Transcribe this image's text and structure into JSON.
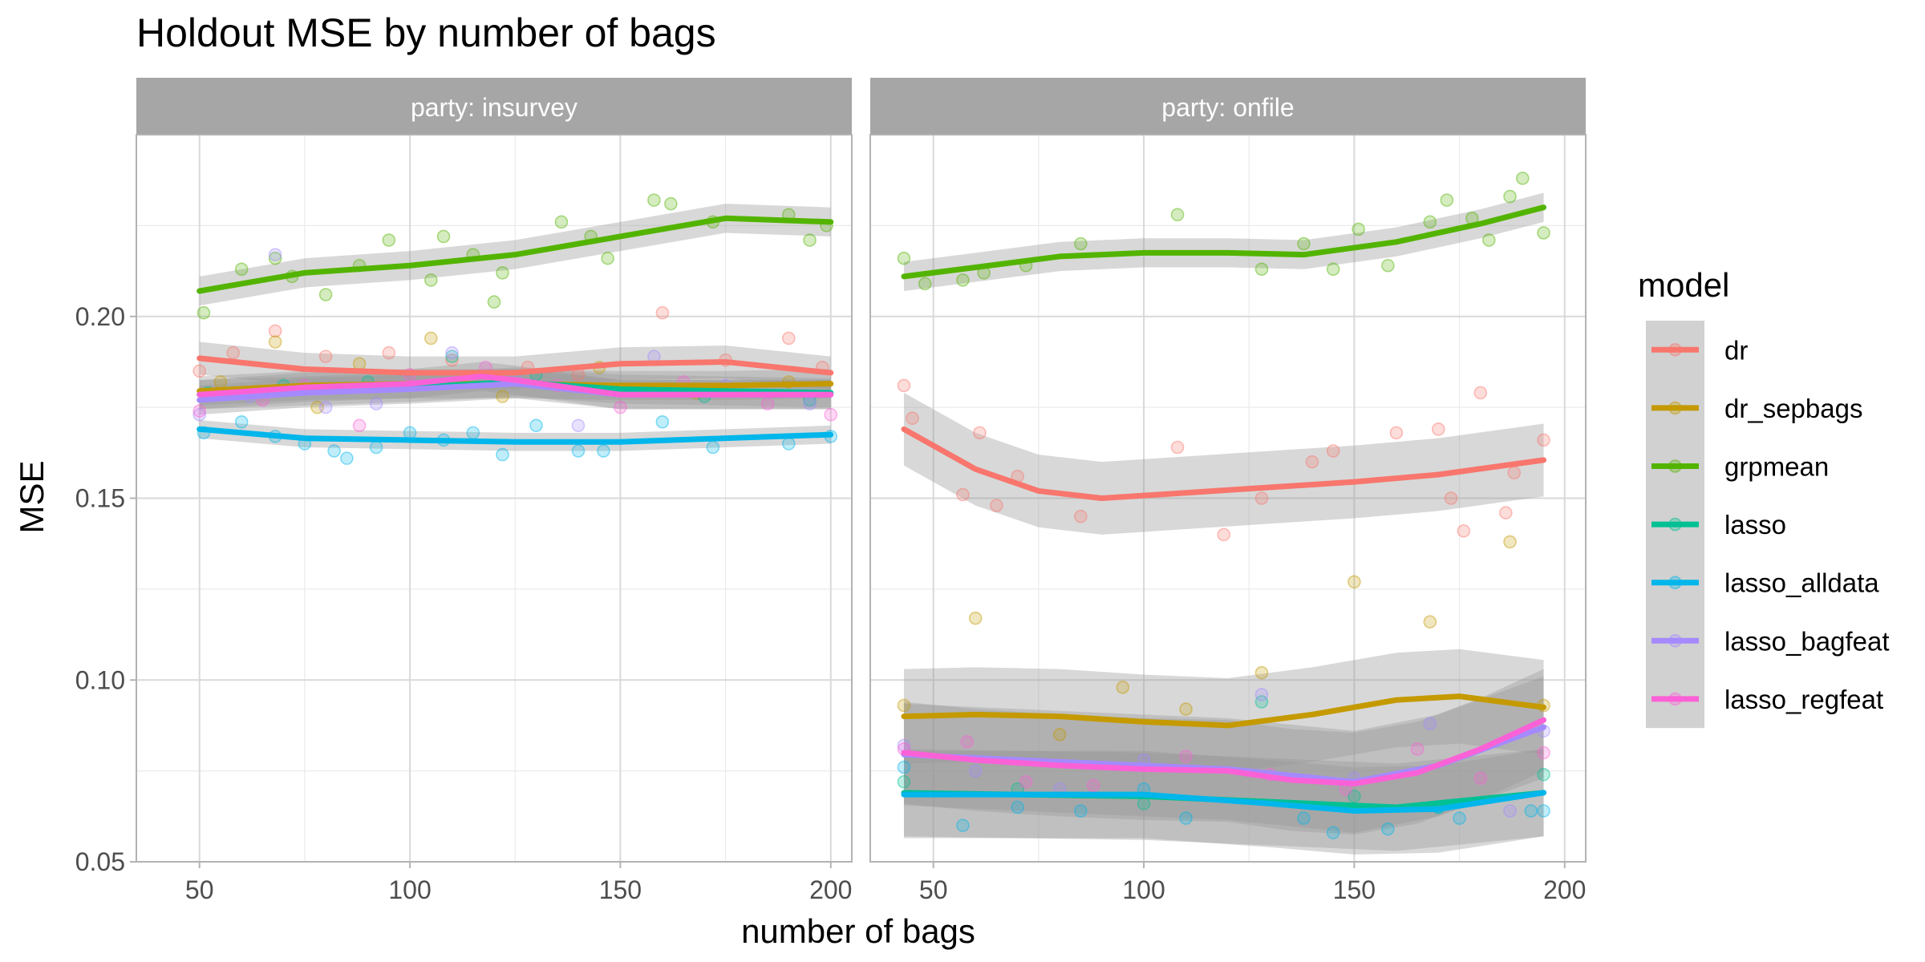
{
  "chart_data": {
    "type": "scatter",
    "title": "Holdout MSE by number of bags",
    "xlabel": "number of bags",
    "ylabel": "MSE",
    "xlim": [
      35,
      205
    ],
    "ylim": [
      0.05,
      0.25
    ],
    "x_ticks": [
      50,
      100,
      150,
      200
    ],
    "y_ticks": [
      0.05,
      0.1,
      0.15,
      0.2
    ],
    "y_tick_labels": [
      "0.05",
      "0.10",
      "0.15",
      "0.20"
    ],
    "grid": true,
    "legend": {
      "title": "model",
      "position": "right",
      "entries": [
        "dr",
        "dr_sepbags",
        "grpmean",
        "lasso",
        "lasso_alldata",
        "lasso_bagfeat",
        "lasso_regfeat"
      ]
    },
    "colors": {
      "dr": "#F8766D",
      "dr_sepbags": "#C49A00",
      "grpmean": "#53B400",
      "lasso": "#00C094",
      "lasso_alldata": "#00B6EB",
      "lasso_bagfeat": "#A58AFF",
      "lasso_regfeat": "#FB61D7",
      "strip_bg": "#A6A6A6",
      "ribbon": "#999999"
    },
    "panels": [
      {
        "strip": "party: insurvey",
        "smooth": [
          {
            "model": "dr",
            "x": [
              50,
              75,
              100,
              125,
              150,
              175,
              200
            ],
            "y": [
              0.1885,
              0.1855,
              0.1845,
              0.1845,
              0.187,
              0.1875,
              0.1845
            ],
            "se": 0.0045
          },
          {
            "model": "dr_sepbags",
            "x": [
              50,
              75,
              100,
              125,
              150,
              175,
              200
            ],
            "y": [
              0.1795,
              0.181,
              0.1815,
              0.1815,
              0.181,
              0.181,
              0.1815
            ],
            "se": 0.004
          },
          {
            "model": "grpmean",
            "x": [
              50,
              75,
              100,
              125,
              150,
              175,
              200
            ],
            "y": [
              0.207,
              0.212,
              0.214,
              0.217,
              0.222,
              0.227,
              0.226
            ],
            "se": 0.004
          },
          {
            "model": "lasso",
            "x": [
              50,
              75,
              100,
              125,
              150,
              175,
              200
            ],
            "y": [
              0.1785,
              0.1795,
              0.1805,
              0.182,
              0.18,
              0.1795,
              0.179
            ],
            "se": 0.004
          },
          {
            "model": "lasso_alldata",
            "x": [
              50,
              75,
              100,
              125,
              150,
              175,
              200
            ],
            "y": [
              0.169,
              0.1665,
              0.166,
              0.1655,
              0.1655,
              0.1665,
              0.1675
            ],
            "se": 0.0025
          },
          {
            "model": "lasso_bagfeat",
            "x": [
              50,
              75,
              100,
              125,
              150,
              175,
              200
            ],
            "y": [
              0.177,
              0.179,
              0.18,
              0.1815,
              0.1785,
              0.1785,
              0.1785
            ],
            "se": 0.004
          },
          {
            "model": "lasso_regfeat",
            "x": [
              50,
              75,
              100,
              117,
              125,
              150,
              175,
              200
            ],
            "y": [
              0.1785,
              0.1805,
              0.1815,
              0.1835,
              0.1825,
              0.1785,
              0.1785,
              0.1785
            ],
            "se": 0.004
          }
        ],
        "points": [
          {
            "model": "dr",
            "x": [
              50,
              58,
              68,
              80,
              95,
              110,
              128,
              140,
              160,
              175,
              190,
              198
            ],
            "y": [
              0.185,
              0.19,
              0.196,
              0.189,
              0.19,
              0.188,
              0.186,
              0.184,
              0.201,
              0.188,
              0.194,
              0.186
            ]
          },
          {
            "model": "dr_sepbags",
            "x": [
              55,
              68,
              78,
              88,
              105,
              122,
              145,
              168,
              190
            ],
            "y": [
              0.182,
              0.193,
              0.175,
              0.187,
              0.194,
              0.178,
              0.186,
              0.179,
              0.182
            ]
          },
          {
            "model": "grpmean",
            "x": [
              51,
              60,
              68,
              72,
              80,
              88,
              95,
              105,
              108,
              115,
              120,
              122,
              136,
              143,
              147,
              158,
              162,
              172,
              190,
              195,
              199
            ],
            "y": [
              0.201,
              0.213,
              0.216,
              0.211,
              0.206,
              0.214,
              0.221,
              0.21,
              0.222,
              0.217,
              0.204,
              0.212,
              0.226,
              0.222,
              0.216,
              0.232,
              0.231,
              0.226,
              0.228,
              0.221,
              0.225
            ]
          },
          {
            "model": "lasso",
            "x": [
              52,
              70,
              90,
              110,
              130,
              150,
              170,
              195
            ],
            "y": [
              0.179,
              0.181,
              0.182,
              0.189,
              0.184,
              0.18,
              0.178,
              0.177
            ]
          },
          {
            "model": "lasso_alldata",
            "x": [
              51,
              60,
              68,
              75,
              82,
              85,
              92,
              100,
              108,
              115,
              122,
              130,
              140,
              146,
              160,
              172,
              190,
              200
            ],
            "y": [
              0.168,
              0.171,
              0.167,
              0.165,
              0.163,
              0.161,
              0.164,
              0.168,
              0.166,
              0.168,
              0.162,
              0.17,
              0.163,
              0.163,
              0.171,
              0.164,
              0.165,
              0.167
            ]
          },
          {
            "model": "lasso_bagfeat",
            "x": [
              50,
              62,
              68,
              80,
              92,
              110,
              125,
              140,
              158,
              175,
              195
            ],
            "y": [
              0.173,
              0.178,
              0.217,
              0.175,
              0.176,
              0.19,
              0.183,
              0.17,
              0.189,
              0.181,
              0.176
            ]
          },
          {
            "model": "lasso_regfeat",
            "x": [
              50,
              65,
              75,
              88,
              100,
              118,
              135,
              150,
              165,
              185,
              200
            ],
            "y": [
              0.174,
              0.177,
              0.181,
              0.17,
              0.184,
              0.186,
              0.181,
              0.175,
              0.182,
              0.176,
              0.173
            ]
          }
        ]
      },
      {
        "strip": "party: onfile",
        "smooth": [
          {
            "model": "dr",
            "x": [
              43,
              60,
              75,
              90,
              110,
              130,
              150,
              170,
              195
            ],
            "y": [
              0.169,
              0.158,
              0.152,
              0.15,
              0.1515,
              0.153,
              0.1545,
              0.1565,
              0.1605
            ],
            "se": 0.01
          },
          {
            "model": "dr_sepbags",
            "x": [
              43,
              60,
              80,
              100,
              120,
              140,
              160,
              175,
              195
            ],
            "y": [
              0.09,
              0.0905,
              0.09,
              0.0885,
              0.0875,
              0.0905,
              0.0945,
              0.0955,
              0.0925
            ],
            "se": 0.013
          },
          {
            "model": "grpmean",
            "x": [
              43,
              60,
              80,
              100,
              120,
              138,
              160,
              180,
              195
            ],
            "y": [
              0.211,
              0.2135,
              0.2165,
              0.2175,
              0.2175,
              0.217,
              0.2205,
              0.2255,
              0.23
            ],
            "se": 0.004
          },
          {
            "model": "lasso",
            "x": [
              43,
              70,
              100,
              130,
              160,
              195
            ],
            "y": [
              0.069,
              0.0685,
              0.068,
              0.0665,
              0.065,
              0.069
            ],
            "se": 0.012
          },
          {
            "model": "lasso_alldata",
            "x": [
              43,
              70,
              100,
              130,
              150,
              170,
              195
            ],
            "y": [
              0.0685,
              0.0685,
              0.0685,
              0.066,
              0.064,
              0.0645,
              0.069
            ],
            "se": 0.012
          },
          {
            "model": "lasso_bagfeat",
            "x": [
              43,
              80,
              120,
              150,
              170,
              195
            ],
            "y": [
              0.0795,
              0.0775,
              0.0755,
              0.072,
              0.0765,
              0.087
            ],
            "se": 0.014
          },
          {
            "model": "lasso_regfeat",
            "x": [
              43,
              60,
              80,
              100,
              120,
              135,
              150,
              165,
              180,
              195
            ],
            "y": [
              0.08,
              0.078,
              0.0765,
              0.0755,
              0.075,
              0.0725,
              0.0715,
              0.0745,
              0.081,
              0.089
            ],
            "se": 0.014
          }
        ],
        "points": [
          {
            "model": "dr",
            "x": [
              43,
              45,
              57,
              61,
              65,
              70,
              85,
              108,
              119,
              128,
              140,
              145,
              160,
              170,
              173,
              176,
              180,
              186,
              188,
              195
            ],
            "y": [
              0.181,
              0.172,
              0.151,
              0.168,
              0.148,
              0.156,
              0.145,
              0.164,
              0.14,
              0.15,
              0.16,
              0.163,
              0.168,
              0.169,
              0.15,
              0.141,
              0.179,
              0.146,
              0.157,
              0.166
            ]
          },
          {
            "model": "dr_sepbags",
            "x": [
              43,
              60,
              80,
              95,
              110,
              128,
              150,
              168,
              187,
              195
            ],
            "y": [
              0.093,
              0.117,
              0.085,
              0.098,
              0.092,
              0.102,
              0.127,
              0.116,
              0.138,
              0.093
            ]
          },
          {
            "model": "grpmean",
            "x": [
              43,
              48,
              57,
              62,
              72,
              85,
              108,
              128,
              138,
              145,
              151,
              158,
              168,
              172,
              178,
              182,
              187,
              190,
              195
            ],
            "y": [
              0.216,
              0.209,
              0.21,
              0.212,
              0.214,
              0.22,
              0.228,
              0.213,
              0.22,
              0.213,
              0.224,
              0.214,
              0.226,
              0.232,
              0.227,
              0.221,
              0.233,
              0.238,
              0.223
            ]
          },
          {
            "model": "lasso",
            "x": [
              43,
              70,
              100,
              128,
              150,
              170,
              195
            ],
            "y": [
              0.072,
              0.07,
              0.066,
              0.094,
              0.068,
              0.065,
              0.074
            ]
          },
          {
            "model": "lasso_alldata",
            "x": [
              43,
              57,
              70,
              85,
              100,
              110,
              138,
              145,
              158,
              170,
              175,
              192,
              195
            ],
            "y": [
              0.076,
              0.06,
              0.065,
              0.064,
              0.07,
              0.062,
              0.062,
              0.058,
              0.059,
              0.065,
              0.062,
              0.064,
              0.064
            ]
          },
          {
            "model": "lasso_bagfeat",
            "x": [
              43,
              60,
              80,
              100,
              128,
              150,
              168,
              187,
              195
            ],
            "y": [
              0.082,
              0.075,
              0.07,
              0.078,
              0.096,
              0.073,
              0.088,
              0.064,
              0.086
            ]
          },
          {
            "model": "lasso_regfeat",
            "x": [
              43,
              58,
              72,
              88,
              110,
              130,
              148,
              165,
              180,
              195
            ],
            "y": [
              0.081,
              0.083,
              0.072,
              0.071,
              0.079,
              0.074,
              0.07,
              0.081,
              0.073,
              0.08
            ]
          }
        ]
      }
    ]
  }
}
